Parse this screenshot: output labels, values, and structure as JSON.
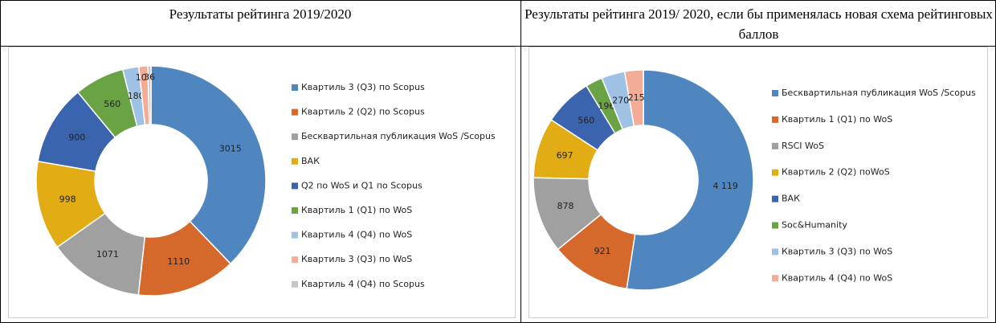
{
  "chart_data": [
    {
      "type": "donut",
      "title": "Результаты рейтинга 2019/2020",
      "categories": [
        "Квартиль 3 (Q3) по Scopus",
        "Квартиль 2  (Q2) по Scopus",
        "Бесквартильная  публикация WoS /Scopus",
        "ВАК",
        "Q2 по WoS и Q1 по Scopus",
        "Квартиль 1 (Q1) по WoS",
        "Квартиль 4 (Q4) по WoS",
        "Квартиль 3 (Q3) по WoS",
        "Квартиль 4 (Q4) по Scopus"
      ],
      "values": [
        3015,
        1110,
        1071,
        998,
        900,
        560,
        180,
        100,
        36
      ],
      "colors": [
        "#4f86c0",
        "#d5692b",
        "#a0a0a0",
        "#e2ac14",
        "#3a65ae",
        "#6aa343",
        "#9fc1e4",
        "#f3ad96",
        "#c6c6c6"
      ]
    },
    {
      "type": "donut",
      "title": "Результаты рейтинга 2019/ 2020, если бы применялась новая схема рейтинговых баллов",
      "categories": [
        "Бесквартильная публикация WoS /Scopus",
        "Квартиль 1 (Q1) по WoS",
        "RSCI WoS",
        "Квартиль 2 (Q2) поWoS",
        "ВАК",
        "Soc&Humanity",
        "Квартиль 3 (Q3) по WoS",
        "Квартиль 4 (Q4) по WoS"
      ],
      "values": [
        4119,
        921,
        878,
        697,
        560,
        196,
        270,
        215
      ],
      "value_labels": [
        "4 119",
        "921",
        "878",
        "697",
        "560",
        "196",
        "270",
        "215"
      ],
      "colors": [
        "#4f86c0",
        "#d5692b",
        "#a0a0a0",
        "#e2ac14",
        "#3a65ae",
        "#6aa343",
        "#9fc1e4",
        "#f3ad96"
      ]
    }
  ]
}
